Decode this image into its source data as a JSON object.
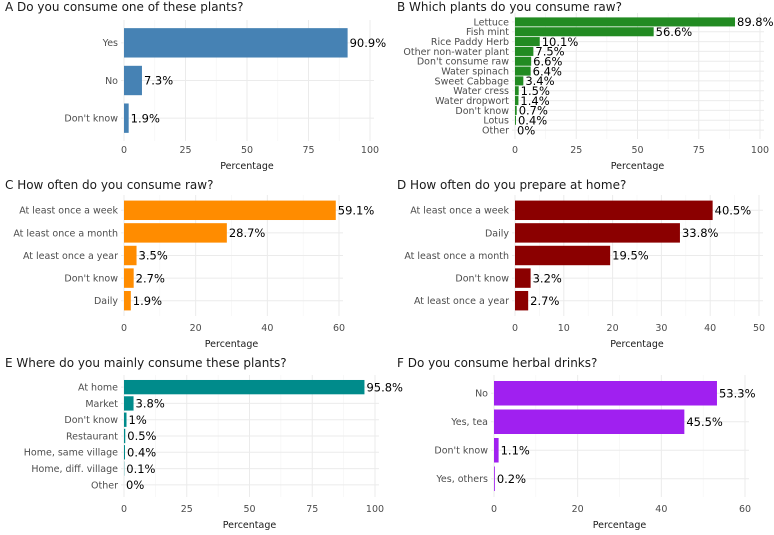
{
  "chart_data": [
    {
      "type": "bar",
      "orientation": "horizontal",
      "title": "A Do you consume one of these plants?",
      "xlabel": "Percentage",
      "color": "#4682b4",
      "xlim": [
        0,
        100
      ],
      "ticks": [
        0,
        25,
        50,
        75,
        100
      ],
      "categories": [
        "Yes",
        "No",
        "Don't know"
      ],
      "values": [
        90.9,
        7.3,
        1.9
      ],
      "labels": [
        "90.9%",
        "7.3%",
        "1.9%"
      ]
    },
    {
      "type": "bar",
      "orientation": "horizontal",
      "title": "B Which plants do you consume raw?",
      "xlabel": "Percentage",
      "color": "#228b22",
      "xlim": [
        0,
        100
      ],
      "ticks": [
        0,
        25,
        50,
        75,
        100
      ],
      "categories": [
        "Lettuce",
        "Fish mint",
        "Rice Paddy Herb",
        "Other non-water plant",
        "Don't consume raw",
        "Water spinach",
        "Sweet Cabbage",
        "Water cress",
        "Water dropwort",
        "Don't know",
        "Lotus",
        "Other"
      ],
      "values": [
        89.8,
        56.6,
        10.1,
        7.5,
        6.6,
        6.4,
        3.4,
        1.5,
        1.4,
        0.7,
        0.4,
        0
      ],
      "labels": [
        "89.8%",
        "56.6%",
        "10.1%",
        "7.5%",
        "6.6%",
        "6.4%",
        "3.4%",
        "1.5%",
        "1.4%",
        "0.7%",
        "0.4%",
        "0%"
      ]
    },
    {
      "type": "bar",
      "orientation": "horizontal",
      "title": "C How often do you consume raw?",
      "xlabel": "Percentage",
      "color": "#ff8c00",
      "xlim": [
        0,
        60
      ],
      "ticks": [
        0,
        20,
        40,
        60
      ],
      "categories": [
        "At least once a week",
        "At least once a month",
        "At least once a year",
        "Don't know",
        "Daily"
      ],
      "values": [
        59.1,
        28.7,
        3.5,
        2.7,
        1.9
      ],
      "labels": [
        "59.1%",
        "28.7%",
        "3.5%",
        "2.7%",
        "1.9%"
      ]
    },
    {
      "type": "bar",
      "orientation": "horizontal",
      "title": "D How often do you prepare at home?",
      "xlabel": "Percentage",
      "color": "#8b0000",
      "xlim": [
        0,
        50
      ],
      "ticks": [
        0,
        10,
        20,
        30,
        40,
        50
      ],
      "categories": [
        "At least once a week",
        "Daily",
        "At least once a month",
        "Don't know",
        "At least once a year"
      ],
      "values": [
        40.5,
        33.8,
        19.5,
        3.2,
        2.7
      ],
      "labels": [
        "40.5%",
        "33.8%",
        "19.5%",
        "3.2%",
        "2.7%"
      ]
    },
    {
      "type": "bar",
      "orientation": "horizontal",
      "title": "E Where do you mainly consume these plants?",
      "xlabel": "Percentage",
      "color": "#008b8b",
      "xlim": [
        0,
        100
      ],
      "ticks": [
        0,
        25,
        50,
        75,
        100
      ],
      "categories": [
        "At home",
        "Market",
        "Don't know",
        "Restaurant",
        "Home, same village",
        "Home, diff. village",
        "Other"
      ],
      "values": [
        95.8,
        3.8,
        1,
        0.5,
        0.4,
        0.1,
        0
      ],
      "labels": [
        "95.8%",
        "3.8%",
        "1%",
        "0.5%",
        "0.4%",
        "0.1%",
        "0%"
      ]
    },
    {
      "type": "bar",
      "orientation": "horizontal",
      "title": "F Do you consume herbal drinks?",
      "xlabel": "Percentage",
      "color": "#a020f0",
      "xlim": [
        0,
        60
      ],
      "ticks": [
        0,
        20,
        40,
        60
      ],
      "categories": [
        "No",
        "Yes, tea",
        "Don't know",
        "Yes, others"
      ],
      "values": [
        53.3,
        45.5,
        1.1,
        0.2
      ],
      "labels": [
        "53.3%",
        "45.5%",
        "1.1%",
        "0.2%"
      ]
    }
  ]
}
